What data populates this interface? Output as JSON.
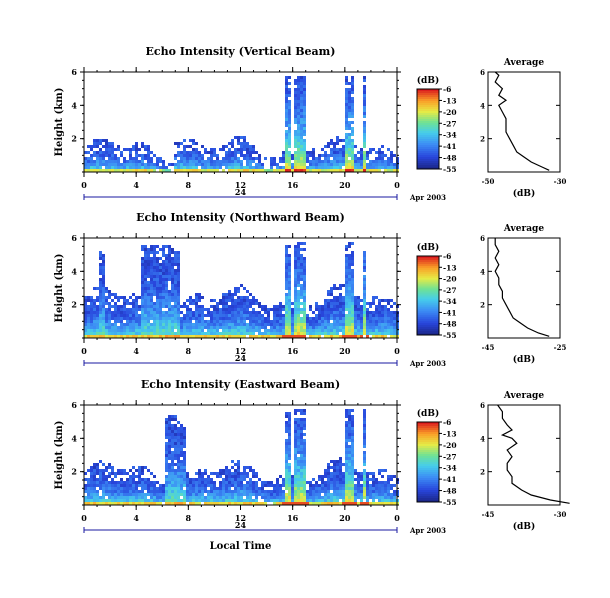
{
  "chart_data": [
    {
      "type": "heatmap",
      "title": "Echo Intensity (Vertical Beam)",
      "ylabel": "Height (km)",
      "ylim": [
        0,
        6
      ],
      "yticks": [
        "6",
        "4",
        "2"
      ],
      "xticks": [
        "0",
        "4",
        "8",
        "12",
        "16",
        "20",
        "0"
      ],
      "xlim": [
        0,
        24
      ],
      "date_tick": "24",
      "date_label": "Apr 2003",
      "colorbar": {
        "unit": "(dB)",
        "ticks": [
          "-6",
          "-13",
          "-20",
          "-27",
          "-34",
          "-41",
          "-48",
          "-55"
        ],
        "range": [
          -55,
          -6
        ]
      },
      "profile": {
        "title": "Average",
        "xlabel": "(dB)",
        "xticks": [
          "-50",
          "-30"
        ],
        "xlim": [
          -50,
          -30
        ],
        "yticks": [
          "6",
          "4",
          "2"
        ],
        "points": [
          [
            -33,
            0.1
          ],
          [
            -35,
            0.3
          ],
          [
            -38,
            0.6
          ],
          [
            -40,
            0.9
          ],
          [
            -42,
            1.2
          ],
          [
            -43,
            1.6
          ],
          [
            -44,
            2.0
          ],
          [
            -45,
            2.4
          ],
          [
            -45,
            2.8
          ],
          [
            -45,
            3.2
          ],
          [
            -46,
            3.6
          ],
          [
            -47,
            4.0
          ],
          [
            -45,
            4.3
          ],
          [
            -47,
            4.6
          ],
          [
            -46,
            5.0
          ],
          [
            -48,
            5.4
          ],
          [
            -47,
            5.8
          ],
          [
            -48,
            6.0
          ]
        ]
      }
    },
    {
      "type": "heatmap",
      "title": "Echo Intensity (Northward Beam)",
      "ylabel": "Height (km)",
      "ylim": [
        0,
        6
      ],
      "yticks": [
        "6",
        "4",
        "2"
      ],
      "xticks": [
        "0",
        "4",
        "8",
        "12",
        "16",
        "20",
        "0"
      ],
      "xlim": [
        0,
        24
      ],
      "date_tick": "24",
      "date_label": "Apr 2003",
      "colorbar": {
        "unit": "(dB)",
        "ticks": [
          "-6",
          "-13",
          "-20",
          "-27",
          "-34",
          "-41",
          "-48",
          "-55"
        ],
        "range": [
          -55,
          -6
        ]
      },
      "profile": {
        "title": "Average",
        "xlabel": "(dB)",
        "xticks": [
          "-45",
          "-25"
        ],
        "xlim": [
          -45,
          -25
        ],
        "yticks": [
          "6",
          "4",
          "2"
        ],
        "points": [
          [
            -28,
            0.1
          ],
          [
            -31,
            0.3
          ],
          [
            -34,
            0.6
          ],
          [
            -36,
            0.9
          ],
          [
            -38,
            1.2
          ],
          [
            -39,
            1.6
          ],
          [
            -40,
            2.0
          ],
          [
            -41,
            2.4
          ],
          [
            -41,
            2.8
          ],
          [
            -42,
            3.2
          ],
          [
            -42,
            3.6
          ],
          [
            -43,
            4.0
          ],
          [
            -42,
            4.4
          ],
          [
            -43,
            4.8
          ],
          [
            -42,
            5.2
          ],
          [
            -43,
            5.6
          ],
          [
            -43,
            6.0
          ]
        ]
      }
    },
    {
      "type": "heatmap",
      "title": "Echo Intensity (Eastward Beam)",
      "ylabel": "Height (km)",
      "ylim": [
        0,
        6
      ],
      "yticks": [
        "6",
        "4",
        "2"
      ],
      "xticks": [
        "0",
        "4",
        "8",
        "12",
        "16",
        "20",
        "0"
      ],
      "xlim": [
        0,
        24
      ],
      "date_tick": "24",
      "date_label": "Apr 2003",
      "xlabel": "Local Time",
      "colorbar": {
        "unit": "(dB)",
        "ticks": [
          "-6",
          "-13",
          "-20",
          "-27",
          "-34",
          "-41",
          "-48",
          "-55"
        ],
        "range": [
          -55,
          -6
        ]
      },
      "profile": {
        "title": "Average",
        "xlabel": "(dB)",
        "xticks": [
          "-45",
          "-30"
        ],
        "xlim": [
          -45,
          -30
        ],
        "yticks": [
          "6",
          "4",
          "2"
        ],
        "points": [
          [
            -28,
            0.1
          ],
          [
            -32,
            0.3
          ],
          [
            -36,
            0.6
          ],
          [
            -38,
            0.9
          ],
          [
            -40,
            1.3
          ],
          [
            -40,
            1.7
          ],
          [
            -41,
            2.1
          ],
          [
            -41,
            2.5
          ],
          [
            -40,
            2.9
          ],
          [
            -41,
            3.3
          ],
          [
            -39,
            3.7
          ],
          [
            -40,
            4.0
          ],
          [
            -42,
            4.2
          ],
          [
            -40,
            4.5
          ],
          [
            -41,
            4.8
          ],
          [
            -42,
            5.2
          ],
          [
            -42,
            5.6
          ],
          [
            -43,
            6.0
          ]
        ]
      }
    }
  ]
}
